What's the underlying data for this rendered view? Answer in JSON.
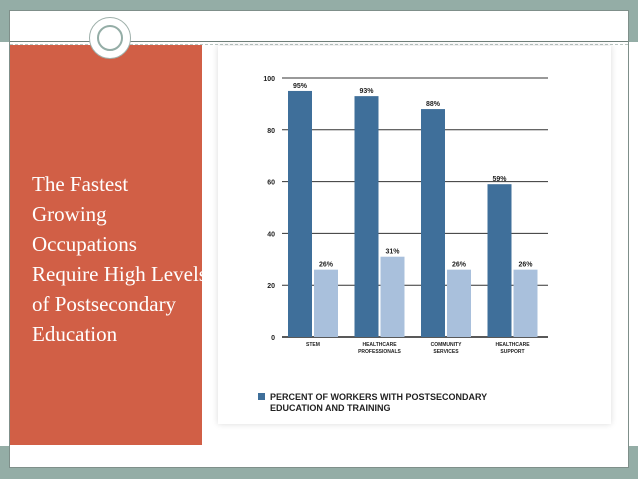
{
  "slide": {
    "title": "The Fastest Growing Occupations Require High Levels of Postsecondary Education"
  },
  "colors": {
    "band": "#94ada6",
    "left_panel": "#d15f46",
    "bar_dark": "#3f6f9a",
    "bar_light": "#a9c0dc"
  },
  "chart_data": {
    "type": "bar",
    "categories": [
      [
        "STEM"
      ],
      [
        "HEALTHCARE",
        "PROFESSIONALS"
      ],
      [
        "COMMUNITY",
        "SERVICES"
      ],
      [
        "HEALTHCARE",
        "SUPPORT"
      ]
    ],
    "series": [
      {
        "name": "PERCENT OF WORKERS WITH POSTSECONDARY EDUCATION AND TRAINING",
        "values": [
          95,
          93,
          88,
          59
        ],
        "labels": [
          "95%",
          "93%",
          "88%",
          "59%"
        ]
      },
      {
        "values": [
          26,
          31,
          26,
          26
        ],
        "labels": [
          "26%",
          "31%",
          "26%",
          "26%"
        ]
      }
    ],
    "ylim": [
      0,
      100
    ],
    "yticks": [
      0,
      20,
      40,
      60,
      80,
      100
    ],
    "grid": true,
    "legend": {
      "position": "bottom",
      "lines": [
        "PERCENT OF WORKERS WITH POSTSECONDARY",
        "EDUCATION AND TRAINING"
      ]
    }
  }
}
